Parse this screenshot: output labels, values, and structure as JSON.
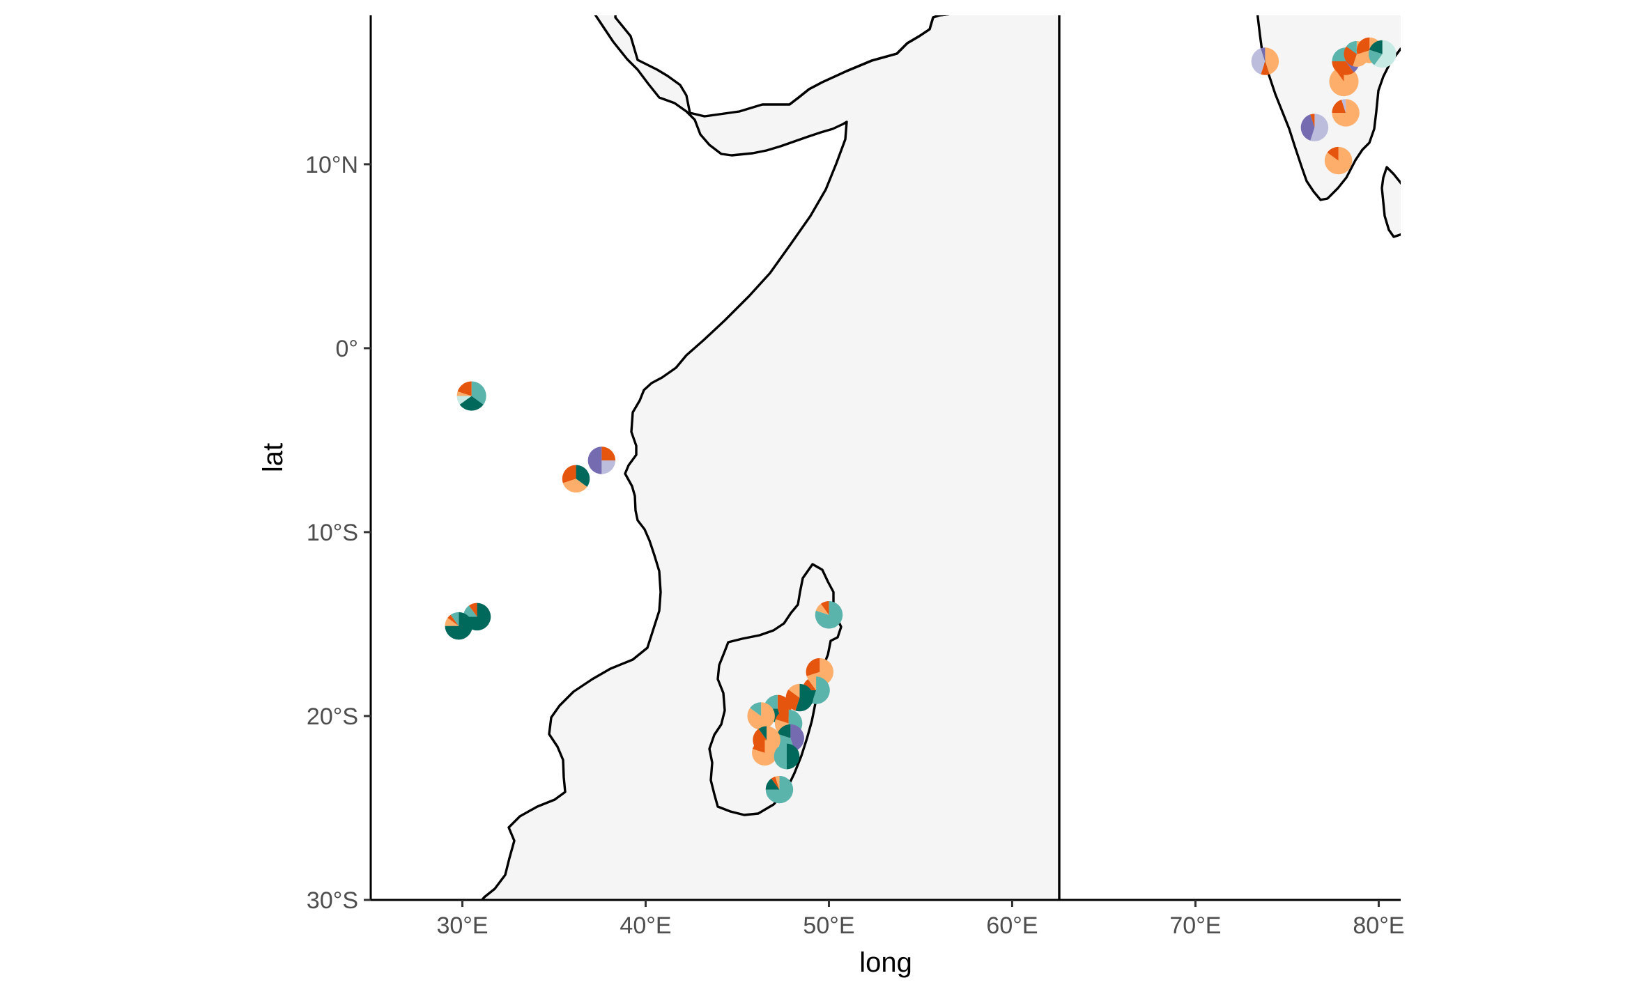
{
  "map": {
    "projection": "equirectangular",
    "extent": {
      "lon": [
        25,
        81.2
      ],
      "lat": [
        -30,
        18.1
      ]
    },
    "x_label": "long",
    "y_label": "lat",
    "x_ticks": [
      {
        "value": 30,
        "label": "30°E"
      },
      {
        "value": 40,
        "label": "40°E"
      },
      {
        "value": 50,
        "label": "50°E"
      },
      {
        "value": 60,
        "label": "60°E"
      },
      {
        "value": 70,
        "label": "70°E"
      },
      {
        "value": 80,
        "label": "80°E"
      }
    ],
    "y_ticks": [
      {
        "value": 10,
        "label": "10°N"
      },
      {
        "value": 0,
        "label": "0°"
      },
      {
        "value": -10,
        "label": "10°S"
      },
      {
        "value": -20,
        "label": "20°S"
      },
      {
        "value": -30,
        "label": "30°S"
      }
    ],
    "land_color": "#f5f5f5",
    "coast_color": "#000000"
  },
  "colors": {
    "orange_dark": "#e6550d",
    "orange_light": "#fdae6b",
    "purple_dark": "#756bb1",
    "purple_light": "#bcbddc",
    "teal_dark": "#00695c",
    "teal_mid": "#5ab4ac",
    "teal_light": "#c7eae5"
  },
  "sites": [
    {
      "lon": 30.5,
      "lat": -2.6,
      "r": 0.8,
      "slices": [
        {
          "c": "teal_mid",
          "v": 0.35
        },
        {
          "c": "teal_dark",
          "v": 0.3
        },
        {
          "c": "teal_light",
          "v": 0.1
        },
        {
          "c": "orange_light",
          "v": 0.05
        },
        {
          "c": "orange_dark",
          "v": 0.2
        }
      ]
    },
    {
      "lon": 37.6,
      "lat": -6.1,
      "r": 0.75,
      "slices": [
        {
          "c": "orange_dark",
          "v": 0.25
        },
        {
          "c": "purple_light",
          "v": 0.25
        },
        {
          "c": "purple_dark",
          "v": 0.5
        }
      ]
    },
    {
      "lon": 36.2,
      "lat": -7.1,
      "r": 0.75,
      "slices": [
        {
          "c": "teal_dark",
          "v": 0.35
        },
        {
          "c": "orange_light",
          "v": 0.35
        },
        {
          "c": "orange_dark",
          "v": 0.3
        }
      ]
    },
    {
      "lon": 30.8,
      "lat": -14.6,
      "r": 0.75,
      "slices": [
        {
          "c": "teal_dark",
          "v": 0.75
        },
        {
          "c": "teal_mid",
          "v": 0.15
        },
        {
          "c": "orange_dark",
          "v": 0.1
        }
      ]
    },
    {
      "lon": 29.8,
      "lat": -15.1,
      "r": 0.75,
      "slices": [
        {
          "c": "teal_dark",
          "v": 0.75
        },
        {
          "c": "orange_light",
          "v": 0.1
        },
        {
          "c": "orange_dark",
          "v": 0.05
        },
        {
          "c": "teal_mid",
          "v": 0.1
        }
      ]
    },
    {
      "lon": 50.0,
      "lat": -14.5,
      "r": 0.75,
      "slices": [
        {
          "c": "teal_mid",
          "v": 0.8
        },
        {
          "c": "orange_light",
          "v": 0.1
        },
        {
          "c": "orange_dark",
          "v": 0.1
        }
      ]
    },
    {
      "lon": 49.5,
      "lat": -17.6,
      "r": 0.75,
      "slices": [
        {
          "c": "orange_light",
          "v": 0.7
        },
        {
          "c": "orange_dark",
          "v": 0.3
        }
      ]
    },
    {
      "lon": 49.3,
      "lat": -18.6,
      "r": 0.75,
      "slices": [
        {
          "c": "teal_mid",
          "v": 0.55
        },
        {
          "c": "teal_dark",
          "v": 0.2
        },
        {
          "c": "orange_dark",
          "v": 0.15
        },
        {
          "c": "orange_light",
          "v": 0.1
        }
      ]
    },
    {
      "lon": 48.4,
      "lat": -19.0,
      "r": 0.75,
      "slices": [
        {
          "c": "teal_dark",
          "v": 0.55
        },
        {
          "c": "orange_dark",
          "v": 0.3
        },
        {
          "c": "orange_light",
          "v": 0.15
        }
      ]
    },
    {
      "lon": 47.2,
      "lat": -19.6,
      "r": 0.75,
      "slices": [
        {
          "c": "orange_dark",
          "v": 0.45
        },
        {
          "c": "teal_dark",
          "v": 0.3
        },
        {
          "c": "teal_mid",
          "v": 0.25
        }
      ]
    },
    {
      "lon": 46.3,
      "lat": -20.0,
      "r": 0.75,
      "slices": [
        {
          "c": "orange_light",
          "v": 0.85
        },
        {
          "c": "teal_mid",
          "v": 0.15
        }
      ]
    },
    {
      "lon": 47.8,
      "lat": -20.4,
      "r": 0.75,
      "slices": [
        {
          "c": "teal_mid",
          "v": 0.5
        },
        {
          "c": "orange_light",
          "v": 0.3
        },
        {
          "c": "orange_dark",
          "v": 0.2
        }
      ]
    },
    {
      "lon": 47.9,
      "lat": -21.2,
      "r": 0.75,
      "slices": [
        {
          "c": "purple_dark",
          "v": 0.45
        },
        {
          "c": "teal_mid",
          "v": 0.35
        },
        {
          "c": "teal_dark",
          "v": 0.2
        }
      ]
    },
    {
      "lon": 46.6,
      "lat": -21.3,
      "r": 0.75,
      "slices": [
        {
          "c": "orange_light",
          "v": 0.6
        },
        {
          "c": "orange_dark",
          "v": 0.3
        },
        {
          "c": "teal_dark",
          "v": 0.1
        }
      ]
    },
    {
      "lon": 46.5,
      "lat": -22.0,
      "r": 0.7,
      "slices": [
        {
          "c": "orange_light",
          "v": 0.8
        },
        {
          "c": "orange_dark",
          "v": 0.2
        }
      ]
    },
    {
      "lon": 47.7,
      "lat": -22.2,
      "r": 0.7,
      "slices": [
        {
          "c": "teal_dark",
          "v": 0.5
        },
        {
          "c": "teal_mid",
          "v": 0.5
        }
      ]
    },
    {
      "lon": 47.3,
      "lat": -24.0,
      "r": 0.75,
      "slices": [
        {
          "c": "teal_mid",
          "v": 0.75
        },
        {
          "c": "teal_dark",
          "v": 0.15
        },
        {
          "c": "orange_dark",
          "v": 0.05
        },
        {
          "c": "orange_light",
          "v": 0.05
        }
      ]
    },
    {
      "lon": 73.8,
      "lat": 15.6,
      "r": 0.75,
      "slices": [
        {
          "c": "orange_light",
          "v": 0.45
        },
        {
          "c": "orange_dark",
          "v": 0.1
        },
        {
          "c": "purple_light",
          "v": 0.4
        },
        {
          "c": "purple_dark",
          "v": 0.05
        }
      ]
    },
    {
      "lon": 76.5,
      "lat": 12.0,
      "r": 0.75,
      "slices": [
        {
          "c": "purple_light",
          "v": 0.55
        },
        {
          "c": "purple_dark",
          "v": 0.4
        },
        {
          "c": "orange_dark",
          "v": 0.05
        }
      ]
    },
    {
      "lon": 77.8,
      "lat": 10.2,
      "r": 0.75,
      "slices": [
        {
          "c": "orange_light",
          "v": 0.85
        },
        {
          "c": "orange_dark",
          "v": 0.15
        }
      ]
    },
    {
      "lon": 78.2,
      "lat": 12.8,
      "r": 0.75,
      "slices": [
        {
          "c": "orange_light",
          "v": 0.75
        },
        {
          "c": "orange_dark",
          "v": 0.2
        },
        {
          "c": "purple_light",
          "v": 0.05
        }
      ]
    },
    {
      "lon": 78.1,
      "lat": 14.5,
      "r": 0.8,
      "slices": [
        {
          "c": "orange_light",
          "v": 0.9
        },
        {
          "c": "orange_dark",
          "v": 0.1
        }
      ]
    },
    {
      "lon": 78.2,
      "lat": 15.6,
      "r": 0.75,
      "slices": [
        {
          "c": "purple_dark",
          "v": 0.4
        },
        {
          "c": "orange_dark",
          "v": 0.35
        },
        {
          "c": "teal_mid",
          "v": 0.25
        }
      ]
    },
    {
      "lon": 78.8,
      "lat": 16.0,
      "r": 0.7,
      "slices": [
        {
          "c": "orange_light",
          "v": 0.55
        },
        {
          "c": "orange_dark",
          "v": 0.3
        },
        {
          "c": "teal_mid",
          "v": 0.15
        }
      ]
    },
    {
      "lon": 79.5,
      "lat": 16.2,
      "r": 0.7,
      "slices": [
        {
          "c": "orange_light",
          "v": 0.7
        },
        {
          "c": "orange_dark",
          "v": 0.3
        }
      ]
    },
    {
      "lon": 80.2,
      "lat": 16.0,
      "r": 0.75,
      "slices": [
        {
          "c": "teal_light",
          "v": 0.6
        },
        {
          "c": "teal_mid",
          "v": 0.2
        },
        {
          "c": "teal_dark",
          "v": 0.2
        }
      ]
    }
  ]
}
